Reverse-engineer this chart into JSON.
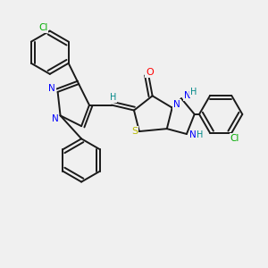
{
  "bg_color": "#f0f0f0",
  "bond_color": "#1a1a1a",
  "atom_colors": {
    "N": "#0000ff",
    "O": "#ff0000",
    "S": "#b8b800",
    "Cl": "#00aa00",
    "H": "#008888",
    "C": "#1a1a1a"
  },
  "figsize": [
    3.0,
    3.0
  ],
  "dpi": 100
}
